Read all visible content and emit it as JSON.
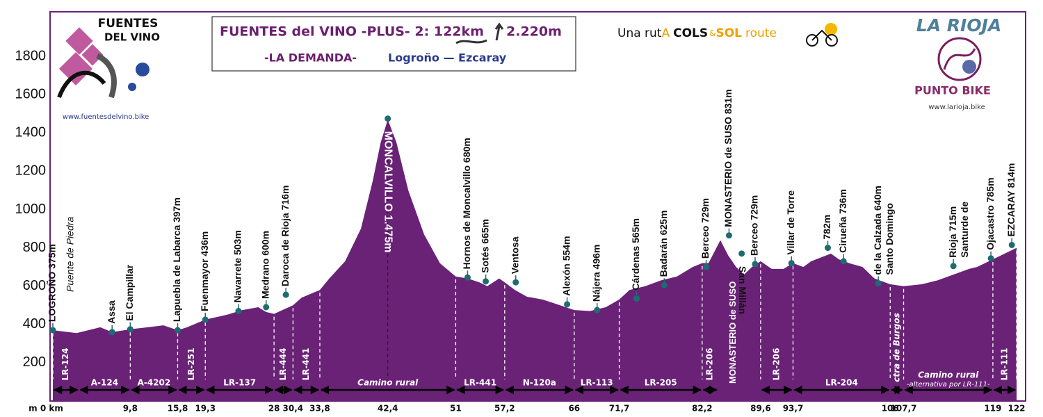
{
  "header": {
    "left_logo": [
      "FUENTES",
      "DEL VINO"
    ],
    "left_url": "www.fuentesdelvino.bike",
    "route_prefix": "Una rut",
    "route_a": "A",
    "route_cols": "COLS",
    "route_amp": "&",
    "route_sol": "SOL",
    "route_suffix": "route",
    "right_title": "LA RIOJA",
    "right_brand": "PUNTO BIKE",
    "right_url": "www.larioja.bike"
  },
  "chart_data": {
    "type": "area",
    "title": "FUENTES del VINO -PLUS- 2: 122km",
    "title_climb": "2.220m",
    "subtitle": "-LA DEMANDA-",
    "route": "Logroño — Ezcaray",
    "note_bridge": "Puente de Piedra",
    "note_suso": "MONASTERIO de SUSO",
    "color": "#6a2277",
    "grid": false,
    "xlim": [
      0,
      122
    ],
    "ylim": [
      0,
      2000
    ],
    "yticks": [
      200,
      400,
      600,
      800,
      1000,
      1200,
      1400,
      1600,
      1800
    ],
    "xticks": [
      {
        "value": 0,
        "label": "m 0 km"
      },
      {
        "value": 9.8,
        "label": "9,8"
      },
      {
        "value": 15.8,
        "label": "15,8"
      },
      {
        "value": 19.3,
        "label": "19,3"
      },
      28,
      {
        "value": 30.4,
        "label": "30,4"
      },
      {
        "value": 33.8,
        "label": "33,8"
      },
      {
        "value": 42.4,
        "label": "42,4"
      },
      51,
      {
        "value": 57.2,
        "label": "57,2"
      },
      66,
      {
        "value": 71.7,
        "label": "71,7"
      },
      {
        "value": 82.2,
        "label": "82,2"
      },
      {
        "value": 89.6,
        "label": "89,6"
      },
      {
        "value": 93.7,
        "label": "93,7"
      },
      106,
      {
        "value": 107.7,
        "label": "107,7"
      },
      119,
      122
    ],
    "x": [
      0,
      3,
      6,
      7.5,
      9.8,
      12,
      14,
      15.8,
      17,
      19.3,
      22,
      24,
      26,
      27,
      28,
      30.4,
      31.5,
      33.8,
      35,
      37,
      39,
      40.5,
      41.5,
      42.4,
      43.5,
      45,
      47,
      49,
      51,
      52.5,
      54,
      55,
      56.5,
      57.2,
      58.5,
      60,
      62,
      63.5,
      66,
      68,
      70,
      71.7,
      73,
      75,
      77,
      79,
      81,
      82.2,
      83,
      84.5,
      85.5,
      86.5,
      87.5,
      88.5,
      89.6,
      91,
      92.5,
      93.7,
      95,
      96,
      98.5,
      99.5,
      100.8,
      102.5,
      104,
      106,
      107.7,
      110,
      112,
      114,
      116,
      117,
      119,
      120,
      122
    ],
    "values": [
      370,
      355,
      385,
      360,
      375,
      385,
      395,
      370,
      385,
      425,
      450,
      475,
      490,
      465,
      455,
      500,
      540,
      580,
      640,
      730,
      900,
      1150,
      1350,
      1470,
      1350,
      1100,
      870,
      720,
      650,
      640,
      620,
      600,
      640,
      620,
      580,
      545,
      530,
      510,
      475,
      470,
      490,
      530,
      580,
      600,
      630,
      650,
      700,
      720,
      720,
      840,
      760,
      700,
      660,
      700,
      730,
      690,
      690,
      720,
      700,
      730,
      770,
      740,
      720,
      700,
      640,
      610,
      600,
      610,
      630,
      660,
      690,
      700,
      740,
      760,
      800
    ],
    "places_up": [
      {
        "lines": [
          "LOGROÑO 375m"
        ],
        "x": 0,
        "y": 370
      },
      {
        "lines": [
          "Assa"
        ],
        "x": 7.5,
        "y": 360
      },
      {
        "lines": [
          "El Campillar"
        ],
        "x": 9.8,
        "y": 375
      },
      {
        "lines": [
          "Lapuebla de Labarca 397m"
        ],
        "x": 15.8,
        "y": 370
      },
      {
        "lines": [
          "Fuenmayor 436m"
        ],
        "x": 19.3,
        "y": 425
      },
      {
        "lines": [
          "Navarrete  503m"
        ],
        "x": 23.5,
        "y": 470
      },
      {
        "lines": [
          "Medrano  600m"
        ],
        "x": 27,
        "y": 490
      },
      {
        "lines": [
          "Daroca de Rioja 716m"
        ],
        "x": 29.5,
        "y": 555
      },
      {
        "lines": [
          "Hornos de Moncalvillo  680m"
        ],
        "x": 52.5,
        "y": 645
      },
      {
        "lines": [
          "Sotés 665m"
        ],
        "x": 54.8,
        "y": 625
      },
      {
        "lines": [
          "Ventosa"
        ],
        "x": 58.6,
        "y": 620
      },
      {
        "lines": [
          "Alexón 554m"
        ],
        "x": 65.1,
        "y": 505
      },
      {
        "lines": [
          "Nájera 496m"
        ],
        "x": 68.9,
        "y": 475
      },
      {
        "lines": [
          "Cárdenas 565m"
        ],
        "x": 73.9,
        "y": 535
      },
      {
        "lines": [
          "Badarán 625m"
        ],
        "x": 77.4,
        "y": 605
      },
      {
        "lines": [
          "Berceo 729m"
        ],
        "x": 82.7,
        "y": 700
      },
      {
        "lines": [
          "MONASTERIO de SUSO 831m"
        ],
        "x": 85.6,
        "y": 865
      },
      {
        "lines": [
          "Berceo 729m"
        ],
        "x": 88.9,
        "y": 715
      },
      {
        "lines": [
          "Villar de Torre"
        ],
        "x": 93.5,
        "y": 720
      },
      {
        "lines": [
          "782m"
        ],
        "x": 98.1,
        "y": 800
      },
      {
        "lines": [
          "Cirueña  736m"
        ],
        "x": 100.1,
        "y": 730
      },
      {
        "lines": [
          "Santo Domingo",
          "de la Calzada 640m"
        ],
        "x": 104.5,
        "y": 615
      },
      {
        "lines": [
          "Santurde de",
          "Rioja 715m"
        ],
        "x": 114,
        "y": 705
      },
      {
        "lines": [
          "Ojacastro 785m"
        ],
        "x": 118.75,
        "y": 745
      },
      {
        "lines": [
          "EZCARAY 814m"
        ],
        "x": 121.4,
        "y": 815
      }
    ],
    "places_down": [
      {
        "lines": [
          "MONCALVILLO 1.475m"
        ],
        "x": 42.4,
        "y": 1475
      },
      {
        "lines": [
          "San Millán"
        ],
        "x": 87.2,
        "y": 770
      }
    ],
    "roads": [
      {
        "label": "LR-124",
        "from": 0,
        "to": 3.3
      },
      {
        "label": "A-124",
        "from": 3.3,
        "to": 9.8
      },
      {
        "label": "A-4202",
        "from": 9.8,
        "to": 15.8
      },
      {
        "label": "LR-251",
        "from": 15.8,
        "to": 19.3
      },
      {
        "label": "LR-137",
        "from": 19.3,
        "to": 28
      },
      {
        "label": "LR-444",
        "from": 28,
        "to": 30.4
      },
      {
        "label": "LR-441",
        "from": 30.4,
        "to": 33.8
      },
      {
        "label": "Camino rural",
        "from": 33.8,
        "to": 51
      },
      {
        "label": "LR-441",
        "from": 51,
        "to": 57.2
      },
      {
        "label": "N-120a",
        "from": 57.2,
        "to": 66
      },
      {
        "label": "LR-113",
        "from": 66,
        "to": 71.7
      },
      {
        "label": "LR-205",
        "from": 71.7,
        "to": 82.2
      },
      {
        "label": "LR-206",
        "from": 82.2,
        "to": 84.2
      },
      {
        "label": "LR-206",
        "from": 89.6,
        "to": 93.7
      },
      {
        "label": "LR-204",
        "from": 93.7,
        "to": 106
      },
      {
        "label": "ctra de Burgos",
        "from": 106,
        "to": 107.7
      },
      {
        "label": "Camino rural",
        "sublabel": "-alternativa por LR-111-",
        "from": 107.7,
        "to": 119
      },
      {
        "label": "LR-111",
        "from": 119,
        "to": 122
      }
    ]
  }
}
